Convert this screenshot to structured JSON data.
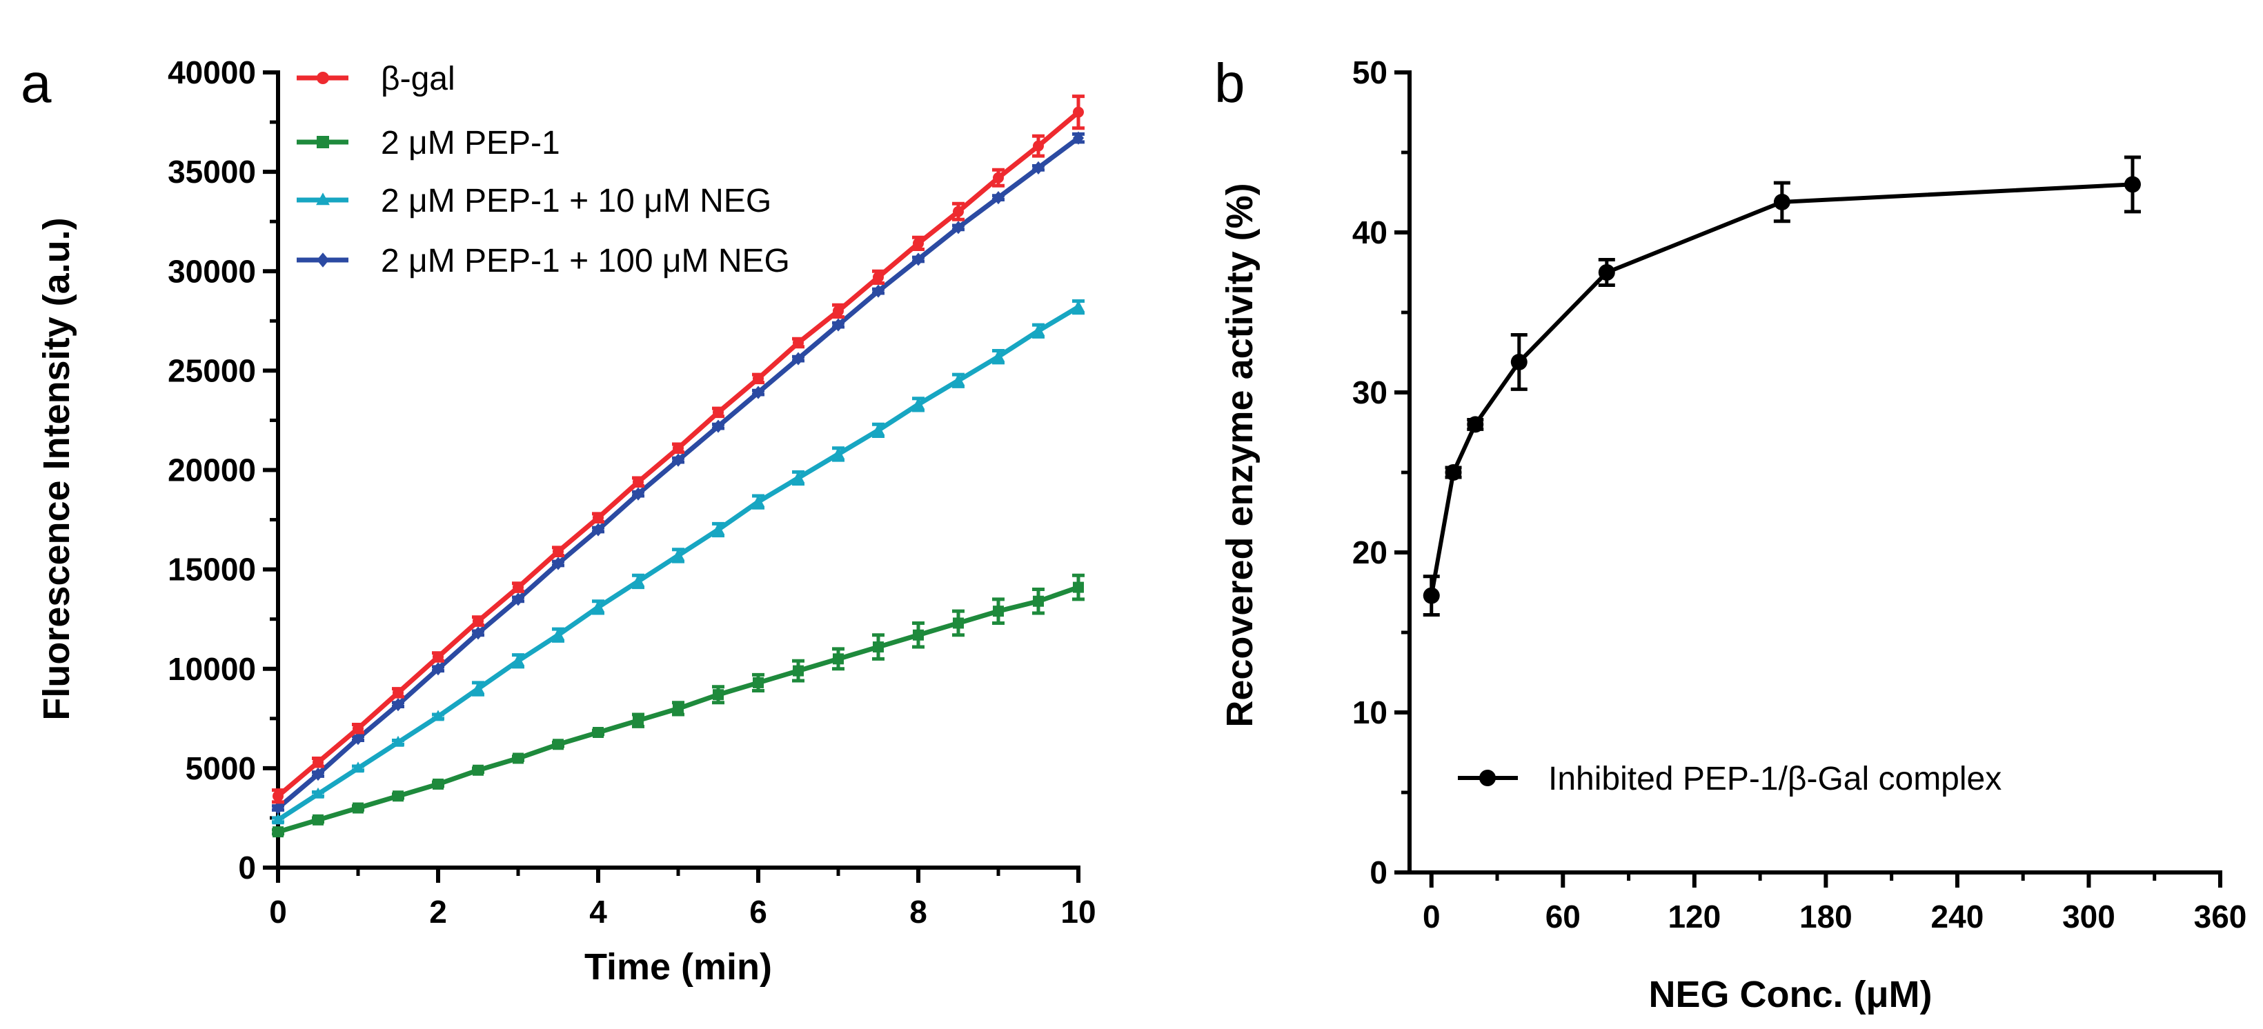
{
  "panel_labels": [
    "a",
    "b"
  ],
  "chart_data": [
    {
      "panel": "a",
      "type": "line",
      "title": "",
      "xlabel": "Time (min)",
      "ylabel": "Fluorescence Intensity (a.u.)",
      "xlim": [
        0,
        10
      ],
      "ylim": [
        0,
        40000
      ],
      "xticks": [
        "0",
        "2",
        "4",
        "6",
        "8",
        "10"
      ],
      "yticks": [
        "0",
        "5000",
        "10000",
        "15000",
        "20000",
        "25000",
        "30000",
        "35000",
        "40000"
      ],
      "grid": false,
      "legend_position": "top-left",
      "x": [
        0,
        0.5,
        1,
        1.5,
        2,
        2.5,
        3,
        3.5,
        4,
        4.5,
        5,
        5.5,
        6,
        6.5,
        7,
        7.5,
        8,
        8.5,
        9,
        9.5,
        10
      ],
      "series": [
        {
          "name": "β-gal",
          "color": "#ee2a2f",
          "marker": "circle",
          "values": [
            3600,
            5300,
            7000,
            8800,
            10600,
            12400,
            14100,
            15900,
            17600,
            19400,
            21100,
            22900,
            24600,
            26400,
            28000,
            29700,
            31400,
            33000,
            34700,
            36300,
            38000
          ],
          "errors": [
            300,
            200,
            200,
            200,
            200,
            200,
            200,
            200,
            200,
            200,
            200,
            200,
            200,
            200,
            300,
            300,
            300,
            400,
            400,
            500,
            800
          ]
        },
        {
          "name": "2 μM PEP-1",
          "color": "#1e8a3c",
          "marker": "square",
          "values": [
            1800,
            2400,
            3000,
            3600,
            4200,
            4900,
            5500,
            6200,
            6800,
            7400,
            8000,
            8700,
            9300,
            9900,
            10500,
            11100,
            11700,
            12300,
            12900,
            13400,
            14100
          ],
          "errors": [
            100,
            100,
            100,
            100,
            100,
            100,
            100,
            100,
            100,
            300,
            300,
            400,
            400,
            500,
            500,
            600,
            600,
            600,
            600,
            600,
            600
          ]
        },
        {
          "name": "2 μM PEP-1 + 10 μM NEG",
          "color": "#17a6c2",
          "marker": "triangle",
          "values": [
            2400,
            3700,
            5000,
            6300,
            7600,
            9000,
            10400,
            11700,
            13100,
            14400,
            15700,
            17000,
            18400,
            19600,
            20800,
            22000,
            23300,
            24500,
            25700,
            27000,
            28200
          ],
          "errors": [
            100,
            100,
            100,
            100,
            100,
            300,
            300,
            300,
            300,
            300,
            300,
            300,
            300,
            300,
            300,
            300,
            300,
            300,
            300,
            300,
            300
          ]
        },
        {
          "name": "2 μM PEP-1 + 100 μM NEG",
          "color": "#2b4aa2",
          "marker": "diamond",
          "values": [
            3000,
            4700,
            6500,
            8200,
            10000,
            11800,
            13500,
            15300,
            17000,
            18800,
            20500,
            22200,
            23900,
            25600,
            27300,
            29000,
            30600,
            32200,
            33700,
            35200,
            36700
          ],
          "errors": [
            100,
            100,
            100,
            100,
            100,
            100,
            100,
            100,
            100,
            100,
            100,
            100,
            100,
            100,
            100,
            100,
            100,
            100,
            100,
            100,
            200
          ]
        }
      ]
    },
    {
      "panel": "b",
      "type": "line",
      "title": "",
      "xlabel": "NEG Conc. (μM)",
      "ylabel": "Recovered enzyme activity (%)",
      "xlim": [
        -10,
        360
      ],
      "ylim": [
        0,
        50
      ],
      "xticks": [
        "0",
        "60",
        "120",
        "180",
        "240",
        "300",
        "360"
      ],
      "yticks": [
        "0",
        "10",
        "20",
        "30",
        "40",
        "50"
      ],
      "grid": false,
      "legend_position": "bottom-left",
      "series": [
        {
          "name": "Inhibited PEP-1/β-Gal complex",
          "color": "#000000",
          "marker": "circle",
          "x": [
            0,
            10,
            20,
            40,
            80,
            160,
            320
          ],
          "values": [
            17.3,
            25.0,
            28.0,
            31.9,
            37.5,
            41.9,
            43.0
          ],
          "errors": [
            1.2,
            0.3,
            0.3,
            1.7,
            0.8,
            1.2,
            1.7
          ]
        }
      ]
    }
  ]
}
